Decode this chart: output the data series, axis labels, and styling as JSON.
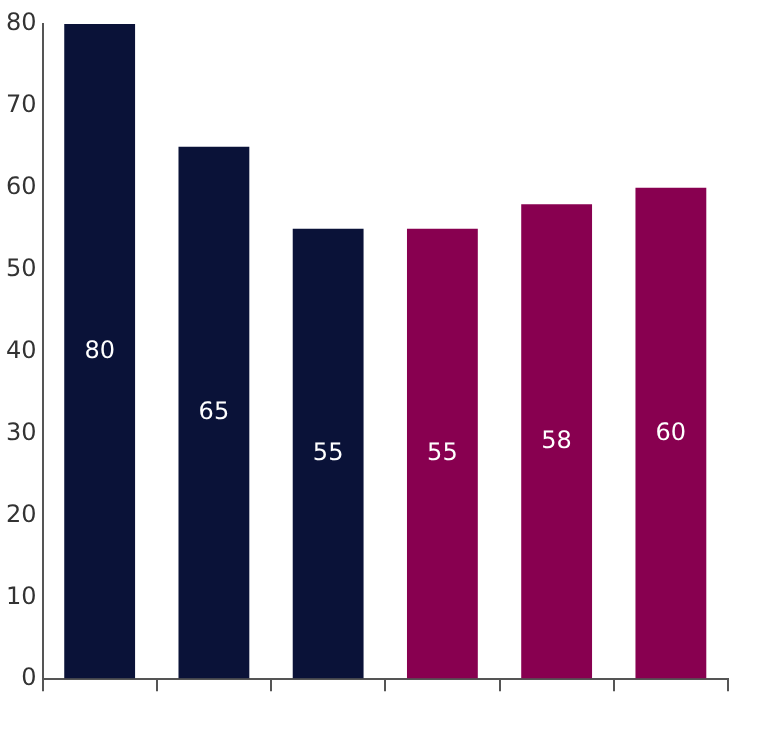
{
  "chart_data": {
    "type": "bar",
    "categories": [
      null,
      null,
      null,
      null,
      null,
      null
    ],
    "values": [
      80,
      65,
      55,
      55,
      58,
      60
    ],
    "colors": [
      "#0a1238",
      "#0a1238",
      "#0a1238",
      "#880050",
      "#880050",
      "#880050"
    ],
    "ylim": [
      0,
      80
    ],
    "yticks": [
      0,
      10,
      20,
      30,
      40,
      50,
      60,
      70,
      80
    ],
    "grid": false,
    "legend": false,
    "data_labels": true
  }
}
